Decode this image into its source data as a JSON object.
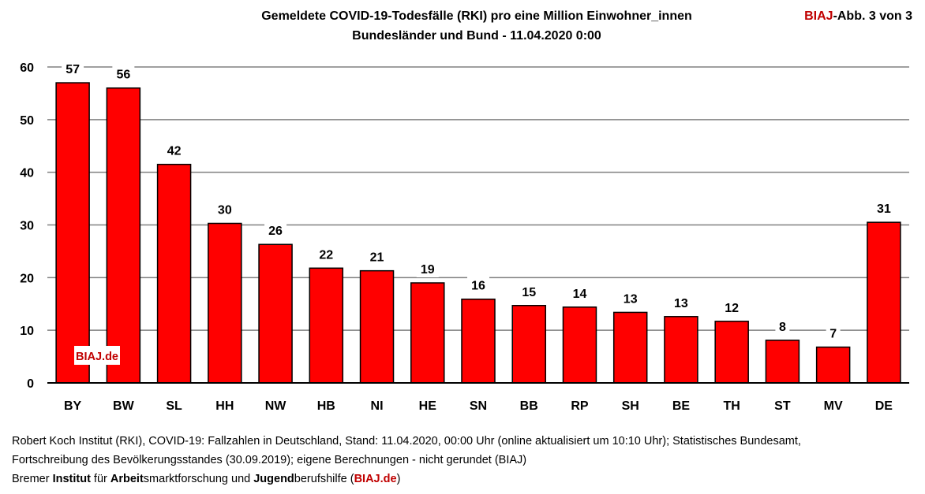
{
  "chart_data": {
    "type": "bar",
    "title": "Gemeldete COVID-19-Todesfälle (RKI) pro eine Million Einwohner_innen",
    "subtitle": "Bundesländer und Bund - 11.04.2020 0:00",
    "categories": [
      "BY",
      "BW",
      "SL",
      "HH",
      "NW",
      "HB",
      "NI",
      "HE",
      "SN",
      "BB",
      "RP",
      "SH",
      "BE",
      "TH",
      "ST",
      "MV",
      "DE"
    ],
    "values": [
      57,
      56,
      41.5,
      30.3,
      26.3,
      21.8,
      21.3,
      19.0,
      15.9,
      14.7,
      14.4,
      13.4,
      12.6,
      11.7,
      8.1,
      6.8,
      30.5
    ],
    "data_labels": [
      "57",
      "56",
      "42",
      "30",
      "26",
      "22",
      "21",
      "19",
      "16",
      "15",
      "14",
      "13",
      "13",
      "12",
      "8",
      "7",
      "31"
    ],
    "ylim": [
      0,
      60
    ],
    "yticks": [
      0,
      10,
      20,
      30,
      40,
      50,
      60
    ],
    "xlabel": "",
    "ylabel": "",
    "grid": true,
    "legend": "none",
    "bar_color": "#ff0000",
    "watermark": "BIAJ.de"
  },
  "header": {
    "abb_brand": "BIAJ",
    "abb_rest": "-Abb. 3 von 3"
  },
  "footer": {
    "line1": "Robert Koch Institut (RKI), COVID-19: Fallzahlen in Deutschland, Stand: 11.04.2020, 00:00 Uhr (online aktualisiert um 10:10 Uhr); Statistisches Bundesamt,",
    "line2": "Fortschreibung des Bevölkerungsstandes (30.09.2019); eigene Berechnungen - nicht gerundet (BIAJ)",
    "line3_parts": [
      "Bremer ",
      "Institut",
      " für ",
      "Arbeit",
      "smarktforschung und ",
      "Jugend",
      "berufshilfe (",
      "BIAJ.de",
      ")"
    ]
  },
  "colors": {
    "accent": "#c00000",
    "bar": "#ff0000",
    "grid": "#808080"
  }
}
